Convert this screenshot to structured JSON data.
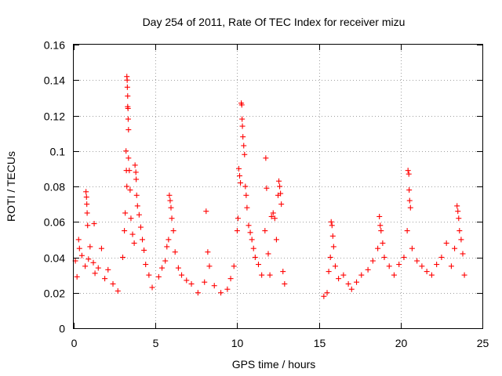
{
  "chart_data": {
    "type": "scatter",
    "title": "Day 254 of 2011, Rate Of TEC Index for receiver mizu",
    "xlabel": "GPS time / hours",
    "ylabel": "ROTI / TECUs",
    "xlim": [
      0,
      25
    ],
    "ylim": [
      0,
      0.16
    ],
    "xticks": [
      0,
      5,
      10,
      15,
      20,
      25
    ],
    "xtick_labels": [
      "0",
      "5",
      "10",
      "15",
      "20",
      "25"
    ],
    "yticks": [
      0,
      0.02,
      0.04,
      0.06,
      0.08,
      0.1,
      0.12,
      0.14,
      0.16
    ],
    "ytick_labels": [
      "0",
      "0.02",
      "0.04",
      "0.06",
      "0.08",
      "0.1",
      "0.12",
      "0.14",
      "0.16"
    ],
    "grid": true,
    "marker": "+",
    "color": "#ff0000",
    "series": [
      {
        "name": "ROTI",
        "points": [
          [
            0.1,
            0.038
          ],
          [
            0.2,
            0.029
          ],
          [
            0.3,
            0.05
          ],
          [
            0.35,
            0.045
          ],
          [
            0.5,
            0.041
          ],
          [
            0.7,
            0.035
          ],
          [
            0.75,
            0.077
          ],
          [
            0.78,
            0.074
          ],
          [
            0.8,
            0.07
          ],
          [
            0.82,
            0.065
          ],
          [
            0.85,
            0.058
          ],
          [
            0.9,
            0.039
          ],
          [
            1.0,
            0.046
          ],
          [
            1.2,
            0.037
          ],
          [
            1.25,
            0.059
          ],
          [
            1.3,
            0.031
          ],
          [
            1.5,
            0.034
          ],
          [
            1.7,
            0.045
          ],
          [
            1.9,
            0.028
          ],
          [
            2.1,
            0.033
          ],
          [
            2.4,
            0.025
          ],
          [
            2.7,
            0.021
          ],
          [
            3.0,
            0.04
          ],
          [
            3.1,
            0.055
          ],
          [
            3.15,
            0.065
          ],
          [
            3.2,
            0.1
          ],
          [
            3.22,
            0.089
          ],
          [
            3.25,
            0.08
          ],
          [
            3.25,
            0.142
          ],
          [
            3.27,
            0.14
          ],
          [
            3.28,
            0.136
          ],
          [
            3.3,
            0.131
          ],
          [
            3.3,
            0.125
          ],
          [
            3.32,
            0.124
          ],
          [
            3.33,
            0.118
          ],
          [
            3.35,
            0.112
          ],
          [
            3.35,
            0.096
          ],
          [
            3.4,
            0.089
          ],
          [
            3.45,
            0.078
          ],
          [
            3.5,
            0.062
          ],
          [
            3.6,
            0.053
          ],
          [
            3.7,
            0.048
          ],
          [
            3.75,
            0.092
          ],
          [
            3.8,
            0.088
          ],
          [
            3.82,
            0.084
          ],
          [
            3.85,
            0.075
          ],
          [
            3.9,
            0.069
          ],
          [
            4.0,
            0.064
          ],
          [
            4.1,
            0.057
          ],
          [
            4.2,
            0.05
          ],
          [
            4.3,
            0.044
          ],
          [
            4.4,
            0.036
          ],
          [
            4.6,
            0.03
          ],
          [
            4.8,
            0.023
          ],
          [
            5.2,
            0.029
          ],
          [
            5.4,
            0.034
          ],
          [
            5.6,
            0.038
          ],
          [
            5.7,
            0.046
          ],
          [
            5.8,
            0.05
          ],
          [
            5.85,
            0.075
          ],
          [
            5.9,
            0.072
          ],
          [
            5.95,
            0.068
          ],
          [
            6.0,
            0.062
          ],
          [
            6.1,
            0.055
          ],
          [
            6.2,
            0.043
          ],
          [
            6.4,
            0.034
          ],
          [
            6.6,
            0.03
          ],
          [
            6.9,
            0.027
          ],
          [
            7.2,
            0.025
          ],
          [
            7.6,
            0.02
          ],
          [
            8.0,
            0.026
          ],
          [
            8.1,
            0.066
          ],
          [
            8.2,
            0.043
          ],
          [
            8.3,
            0.035
          ],
          [
            8.6,
            0.024
          ],
          [
            9.0,
            0.02
          ],
          [
            9.4,
            0.022
          ],
          [
            9.6,
            0.028
          ],
          [
            9.8,
            0.035
          ],
          [
            10.0,
            0.055
          ],
          [
            10.05,
            0.062
          ],
          [
            10.1,
            0.09
          ],
          [
            10.15,
            0.086
          ],
          [
            10.2,
            0.082
          ],
          [
            10.25,
            0.127
          ],
          [
            10.28,
            0.126
          ],
          [
            10.3,
            0.118
          ],
          [
            10.32,
            0.114
          ],
          [
            10.35,
            0.108
          ],
          [
            10.4,
            0.103
          ],
          [
            10.45,
            0.098
          ],
          [
            10.5,
            0.08
          ],
          [
            10.55,
            0.075
          ],
          [
            10.6,
            0.068
          ],
          [
            10.7,
            0.058
          ],
          [
            10.8,
            0.054
          ],
          [
            10.9,
            0.05
          ],
          [
            11.0,
            0.045
          ],
          [
            11.1,
            0.04
          ],
          [
            11.3,
            0.036
          ],
          [
            11.5,
            0.03
          ],
          [
            11.7,
            0.055
          ],
          [
            11.75,
            0.096
          ],
          [
            11.8,
            0.079
          ],
          [
            11.9,
            0.042
          ],
          [
            12.0,
            0.03
          ],
          [
            12.1,
            0.063
          ],
          [
            12.2,
            0.065
          ],
          [
            12.3,
            0.062
          ],
          [
            12.4,
            0.05
          ],
          [
            12.5,
            0.075
          ],
          [
            12.55,
            0.083
          ],
          [
            12.6,
            0.08
          ],
          [
            12.65,
            0.076
          ],
          [
            12.7,
            0.07
          ],
          [
            12.8,
            0.032
          ],
          [
            12.9,
            0.025
          ],
          [
            15.3,
            0.018
          ],
          [
            15.5,
            0.02
          ],
          [
            15.6,
            0.032
          ],
          [
            15.7,
            0.04
          ],
          [
            15.75,
            0.06
          ],
          [
            15.8,
            0.058
          ],
          [
            15.85,
            0.052
          ],
          [
            15.9,
            0.046
          ],
          [
            16.0,
            0.035
          ],
          [
            16.2,
            0.028
          ],
          [
            16.5,
            0.03
          ],
          [
            16.8,
            0.025
          ],
          [
            17.0,
            0.022
          ],
          [
            17.3,
            0.026
          ],
          [
            17.6,
            0.03
          ],
          [
            18.0,
            0.033
          ],
          [
            18.3,
            0.038
          ],
          [
            18.6,
            0.045
          ],
          [
            18.7,
            0.063
          ],
          [
            18.75,
            0.058
          ],
          [
            18.8,
            0.055
          ],
          [
            18.9,
            0.048
          ],
          [
            19.0,
            0.04
          ],
          [
            19.3,
            0.035
          ],
          [
            19.6,
            0.03
          ],
          [
            19.9,
            0.036
          ],
          [
            20.2,
            0.04
          ],
          [
            20.4,
            0.055
          ],
          [
            20.45,
            0.089
          ],
          [
            20.5,
            0.087
          ],
          [
            20.52,
            0.078
          ],
          [
            20.55,
            0.072
          ],
          [
            20.6,
            0.068
          ],
          [
            20.7,
            0.045
          ],
          [
            21.0,
            0.038
          ],
          [
            21.3,
            0.035
          ],
          [
            21.6,
            0.032
          ],
          [
            21.9,
            0.03
          ],
          [
            22.2,
            0.036
          ],
          [
            22.5,
            0.04
          ],
          [
            22.8,
            0.048
          ],
          [
            23.1,
            0.035
          ],
          [
            23.3,
            0.045
          ],
          [
            23.45,
            0.069
          ],
          [
            23.5,
            0.066
          ],
          [
            23.55,
            0.062
          ],
          [
            23.6,
            0.055
          ],
          [
            23.7,
            0.05
          ],
          [
            23.8,
            0.042
          ],
          [
            23.9,
            0.03
          ]
        ]
      }
    ]
  }
}
